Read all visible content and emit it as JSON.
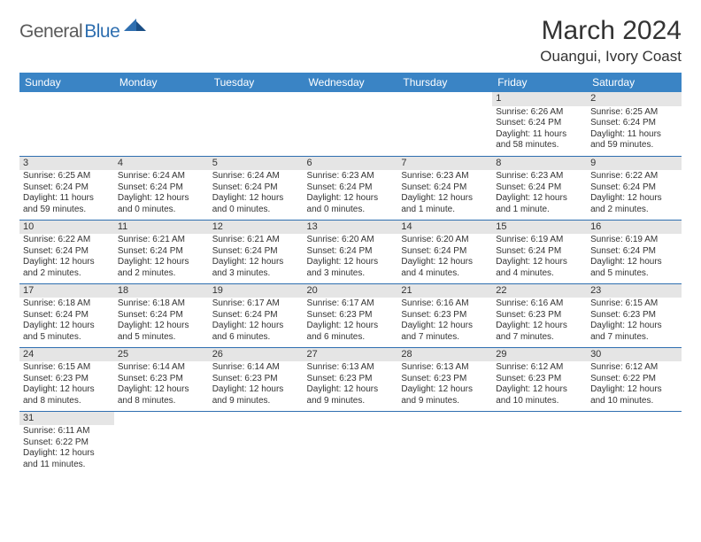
{
  "logo": {
    "text1": "General",
    "text2": "Blue"
  },
  "title": "March 2024",
  "location": "Ouangui, Ivory Coast",
  "colors": {
    "header_bg": "#3a84c5",
    "row_divider": "#2f6fb0",
    "daynum_bg": "#e5e5e5",
    "logo_gray": "#5a5a5a",
    "logo_blue": "#2f6fb0",
    "page_bg": "#ffffff",
    "text": "#333333"
  },
  "weekdays": [
    "Sunday",
    "Monday",
    "Tuesday",
    "Wednesday",
    "Thursday",
    "Friday",
    "Saturday"
  ],
  "weeks": [
    [
      null,
      null,
      null,
      null,
      null,
      {
        "n": "1",
        "sr": "Sunrise: 6:26 AM",
        "ss": "Sunset: 6:24 PM",
        "d1": "Daylight: 11 hours",
        "d2": "and 58 minutes."
      },
      {
        "n": "2",
        "sr": "Sunrise: 6:25 AM",
        "ss": "Sunset: 6:24 PM",
        "d1": "Daylight: 11 hours",
        "d2": "and 59 minutes."
      }
    ],
    [
      {
        "n": "3",
        "sr": "Sunrise: 6:25 AM",
        "ss": "Sunset: 6:24 PM",
        "d1": "Daylight: 11 hours",
        "d2": "and 59 minutes."
      },
      {
        "n": "4",
        "sr": "Sunrise: 6:24 AM",
        "ss": "Sunset: 6:24 PM",
        "d1": "Daylight: 12 hours",
        "d2": "and 0 minutes."
      },
      {
        "n": "5",
        "sr": "Sunrise: 6:24 AM",
        "ss": "Sunset: 6:24 PM",
        "d1": "Daylight: 12 hours",
        "d2": "and 0 minutes."
      },
      {
        "n": "6",
        "sr": "Sunrise: 6:23 AM",
        "ss": "Sunset: 6:24 PM",
        "d1": "Daylight: 12 hours",
        "d2": "and 0 minutes."
      },
      {
        "n": "7",
        "sr": "Sunrise: 6:23 AM",
        "ss": "Sunset: 6:24 PM",
        "d1": "Daylight: 12 hours",
        "d2": "and 1 minute."
      },
      {
        "n": "8",
        "sr": "Sunrise: 6:23 AM",
        "ss": "Sunset: 6:24 PM",
        "d1": "Daylight: 12 hours",
        "d2": "and 1 minute."
      },
      {
        "n": "9",
        "sr": "Sunrise: 6:22 AM",
        "ss": "Sunset: 6:24 PM",
        "d1": "Daylight: 12 hours",
        "d2": "and 2 minutes."
      }
    ],
    [
      {
        "n": "10",
        "sr": "Sunrise: 6:22 AM",
        "ss": "Sunset: 6:24 PM",
        "d1": "Daylight: 12 hours",
        "d2": "and 2 minutes."
      },
      {
        "n": "11",
        "sr": "Sunrise: 6:21 AM",
        "ss": "Sunset: 6:24 PM",
        "d1": "Daylight: 12 hours",
        "d2": "and 2 minutes."
      },
      {
        "n": "12",
        "sr": "Sunrise: 6:21 AM",
        "ss": "Sunset: 6:24 PM",
        "d1": "Daylight: 12 hours",
        "d2": "and 3 minutes."
      },
      {
        "n": "13",
        "sr": "Sunrise: 6:20 AM",
        "ss": "Sunset: 6:24 PM",
        "d1": "Daylight: 12 hours",
        "d2": "and 3 minutes."
      },
      {
        "n": "14",
        "sr": "Sunrise: 6:20 AM",
        "ss": "Sunset: 6:24 PM",
        "d1": "Daylight: 12 hours",
        "d2": "and 4 minutes."
      },
      {
        "n": "15",
        "sr": "Sunrise: 6:19 AM",
        "ss": "Sunset: 6:24 PM",
        "d1": "Daylight: 12 hours",
        "d2": "and 4 minutes."
      },
      {
        "n": "16",
        "sr": "Sunrise: 6:19 AM",
        "ss": "Sunset: 6:24 PM",
        "d1": "Daylight: 12 hours",
        "d2": "and 5 minutes."
      }
    ],
    [
      {
        "n": "17",
        "sr": "Sunrise: 6:18 AM",
        "ss": "Sunset: 6:24 PM",
        "d1": "Daylight: 12 hours",
        "d2": "and 5 minutes."
      },
      {
        "n": "18",
        "sr": "Sunrise: 6:18 AM",
        "ss": "Sunset: 6:24 PM",
        "d1": "Daylight: 12 hours",
        "d2": "and 5 minutes."
      },
      {
        "n": "19",
        "sr": "Sunrise: 6:17 AM",
        "ss": "Sunset: 6:24 PM",
        "d1": "Daylight: 12 hours",
        "d2": "and 6 minutes."
      },
      {
        "n": "20",
        "sr": "Sunrise: 6:17 AM",
        "ss": "Sunset: 6:23 PM",
        "d1": "Daylight: 12 hours",
        "d2": "and 6 minutes."
      },
      {
        "n": "21",
        "sr": "Sunrise: 6:16 AM",
        "ss": "Sunset: 6:23 PM",
        "d1": "Daylight: 12 hours",
        "d2": "and 7 minutes."
      },
      {
        "n": "22",
        "sr": "Sunrise: 6:16 AM",
        "ss": "Sunset: 6:23 PM",
        "d1": "Daylight: 12 hours",
        "d2": "and 7 minutes."
      },
      {
        "n": "23",
        "sr": "Sunrise: 6:15 AM",
        "ss": "Sunset: 6:23 PM",
        "d1": "Daylight: 12 hours",
        "d2": "and 7 minutes."
      }
    ],
    [
      {
        "n": "24",
        "sr": "Sunrise: 6:15 AM",
        "ss": "Sunset: 6:23 PM",
        "d1": "Daylight: 12 hours",
        "d2": "and 8 minutes."
      },
      {
        "n": "25",
        "sr": "Sunrise: 6:14 AM",
        "ss": "Sunset: 6:23 PM",
        "d1": "Daylight: 12 hours",
        "d2": "and 8 minutes."
      },
      {
        "n": "26",
        "sr": "Sunrise: 6:14 AM",
        "ss": "Sunset: 6:23 PM",
        "d1": "Daylight: 12 hours",
        "d2": "and 9 minutes."
      },
      {
        "n": "27",
        "sr": "Sunrise: 6:13 AM",
        "ss": "Sunset: 6:23 PM",
        "d1": "Daylight: 12 hours",
        "d2": "and 9 minutes."
      },
      {
        "n": "28",
        "sr": "Sunrise: 6:13 AM",
        "ss": "Sunset: 6:23 PM",
        "d1": "Daylight: 12 hours",
        "d2": "and 9 minutes."
      },
      {
        "n": "29",
        "sr": "Sunrise: 6:12 AM",
        "ss": "Sunset: 6:23 PM",
        "d1": "Daylight: 12 hours",
        "d2": "and 10 minutes."
      },
      {
        "n": "30",
        "sr": "Sunrise: 6:12 AM",
        "ss": "Sunset: 6:22 PM",
        "d1": "Daylight: 12 hours",
        "d2": "and 10 minutes."
      }
    ],
    [
      {
        "n": "31",
        "sr": "Sunrise: 6:11 AM",
        "ss": "Sunset: 6:22 PM",
        "d1": "Daylight: 12 hours",
        "d2": "and 11 minutes."
      },
      null,
      null,
      null,
      null,
      null,
      null
    ]
  ]
}
